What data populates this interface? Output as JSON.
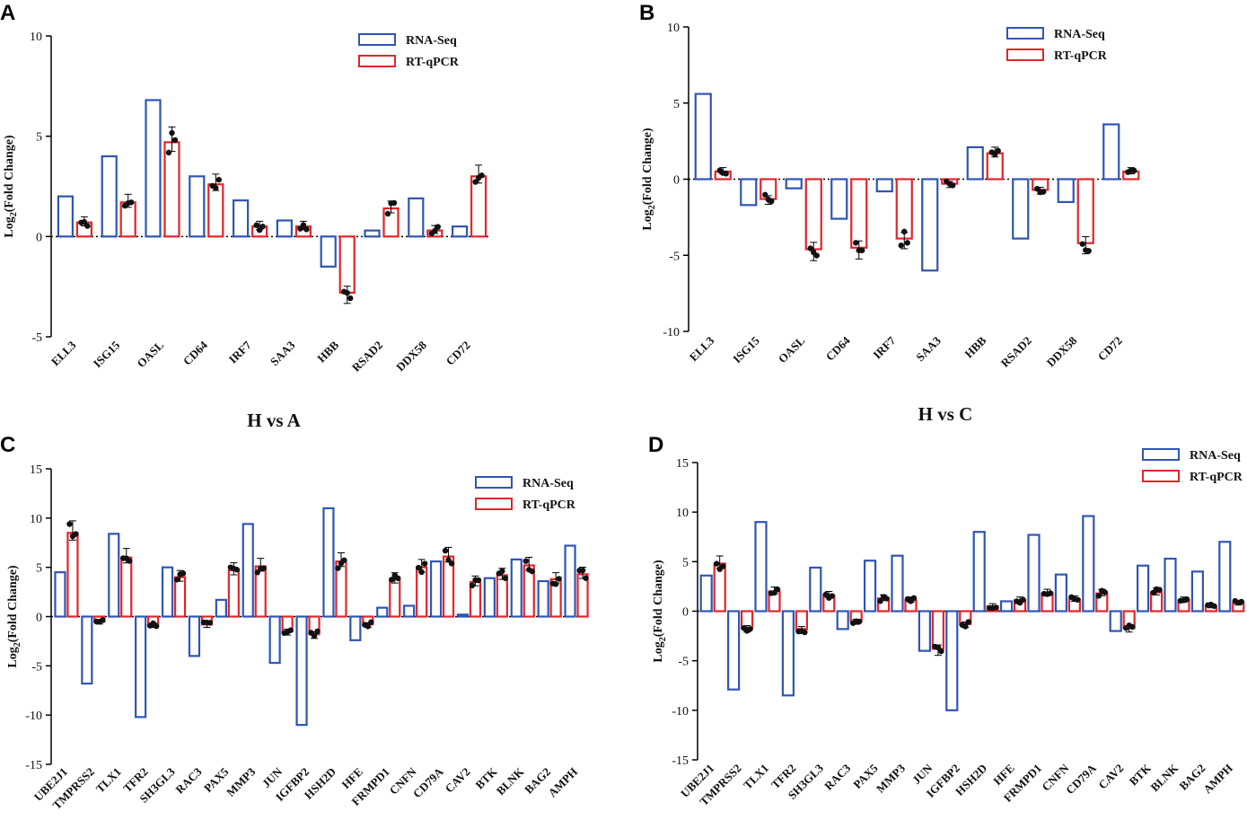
{
  "colors": {
    "rna": "#2f55b4",
    "qpcr": "#e0262b",
    "dot": "#111111"
  },
  "legend": {
    "rna_label": "RNA-Seq",
    "qpcr_label": "RT-qPCR"
  },
  "chart_data": [
    {
      "panel": "A",
      "type": "bar",
      "subtitle": "H vs A",
      "ylabel_main": "Log",
      "ylabel_sub": "2",
      "ylabel_rest": "(Fold Change)",
      "ylim": [
        -5,
        10
      ],
      "yticks": [
        -5,
        0,
        5,
        10
      ],
      "ytick_labels": [
        "-5",
        "0",
        "5",
        "10"
      ],
      "legend_position": "top-right",
      "categories": [
        "ELL3",
        "ISG15",
        "OASL",
        "CD64",
        "IRF7",
        "SAA3",
        "HBB",
        "RSAD2",
        "DDX58",
        "CD72"
      ],
      "series": [
        {
          "name": "RNA-Seq",
          "values": [
            2.0,
            4.0,
            6.8,
            3.0,
            1.8,
            0.8,
            -1.5,
            0.3,
            1.9,
            0.5
          ]
        },
        {
          "name": "RT-qPCR",
          "values": [
            0.7,
            1.7,
            4.7,
            2.6,
            0.5,
            0.5,
            -2.8,
            1.4,
            0.3,
            3.0
          ]
        }
      ]
    },
    {
      "panel": "B",
      "type": "bar",
      "subtitle": "H vs C",
      "ylabel_main": "Log",
      "ylabel_sub": "2",
      "ylabel_rest": "(Fold Change)",
      "ylim": [
        -10,
        10
      ],
      "yticks": [
        -10,
        -5,
        0,
        5,
        10
      ],
      "ytick_labels": [
        "-10",
        "-5",
        "0",
        "5",
        "10"
      ],
      "legend_position": "top-right",
      "categories": [
        "ELL3",
        "ISG15",
        "OASL",
        "CD64",
        "IRF7",
        "SAA3",
        "HBB",
        "RSAD2",
        "DDX58",
        "CD72"
      ],
      "series": [
        {
          "name": "RNA-Seq",
          "values": [
            5.6,
            -1.7,
            -0.6,
            -2.6,
            -0.8,
            -6.0,
            2.1,
            -3.9,
            -1.5,
            3.6
          ]
        },
        {
          "name": "RT-qPCR",
          "values": [
            0.5,
            -1.3,
            -4.6,
            -4.5,
            -3.9,
            -0.3,
            1.7,
            -0.7,
            -4.2,
            0.5
          ]
        }
      ]
    },
    {
      "panel": "C",
      "type": "bar",
      "subtitle": "",
      "ylabel_main": "Log",
      "ylabel_sub": "2",
      "ylabel_rest": "(Fold Change)",
      "ylim": [
        -15,
        15
      ],
      "yticks": [
        -15,
        -10,
        -5,
        0,
        5,
        10,
        15
      ],
      "ytick_labels": [
        "-15",
        "-10",
        "-5",
        "0",
        "5",
        "10",
        "15"
      ],
      "legend_position": "top-right",
      "categories": [
        "UBE2J1",
        "TMPRSS2",
        "TLX1",
        "TFR2",
        "SH3GL3",
        "RAC3",
        "PAX5",
        "MMP3",
        "JUN",
        "IGFBP2",
        "HSH2D",
        "HFE",
        "FRMPD1",
        "CNFN",
        "CD79A",
        "CAV2",
        "BTK",
        "BLNK",
        "BAG2",
        "AMPH"
      ],
      "series": [
        {
          "name": "RNA-Seq",
          "values": [
            4.5,
            -6.8,
            8.4,
            -10.2,
            5.0,
            -4.0,
            1.7,
            9.4,
            -4.7,
            -11.0,
            11.0,
            -2.4,
            0.9,
            1.1,
            5.6,
            0.2,
            3.9,
            5.8,
            3.6,
            7.2
          ]
        },
        {
          "name": "RT-qPCR",
          "values": [
            8.5,
            -0.5,
            6.0,
            -0.8,
            4.0,
            -0.8,
            4.7,
            5.1,
            -1.5,
            -1.8,
            5.6,
            -0.8,
            3.8,
            5.0,
            6.1,
            3.5,
            4.2,
            5.2,
            3.8,
            4.3
          ]
        }
      ]
    },
    {
      "panel": "D",
      "type": "bar",
      "subtitle": "",
      "ylabel_main": "Log",
      "ylabel_sub": "2",
      "ylabel_rest": "(Fold Change)",
      "ylim": [
        -15,
        15
      ],
      "yticks": [
        -15,
        -10,
        -5,
        0,
        5,
        10,
        15
      ],
      "ytick_labels": [
        "-15",
        "-10",
        "-5",
        "0",
        "5",
        "10",
        "15"
      ],
      "legend_position": "top-right",
      "categories": [
        "UBE2J1",
        "TMPRSS2",
        "TLX1",
        "TFR2",
        "SH3GL3",
        "RAC3",
        "PAX5",
        "MMP3",
        "JUN",
        "IGFBP2",
        "HSH2D",
        "HFE",
        "FRMPD1",
        "CNFN",
        "CD79A",
        "CAV2",
        "BTK",
        "BLNK",
        "BAG2",
        "AMPH"
      ],
      "series": [
        {
          "name": "RNA-Seq",
          "values": [
            3.6,
            -7.9,
            9.0,
            -8.5,
            4.4,
            -1.8,
            5.1,
            5.6,
            -4.0,
            -10.0,
            8.0,
            1.0,
            7.7,
            3.7,
            9.6,
            -2.0,
            4.6,
            5.3,
            4.0,
            7.0
          ]
        },
        {
          "name": "RT-qPCR",
          "values": [
            4.8,
            -1.7,
            2.0,
            -1.8,
            1.6,
            -1.0,
            1.3,
            1.1,
            -3.8,
            -1.3,
            0.5,
            1.1,
            1.8,
            1.2,
            1.8,
            -1.7,
            1.9,
            1.1,
            0.5,
            0.8
          ]
        }
      ]
    }
  ]
}
